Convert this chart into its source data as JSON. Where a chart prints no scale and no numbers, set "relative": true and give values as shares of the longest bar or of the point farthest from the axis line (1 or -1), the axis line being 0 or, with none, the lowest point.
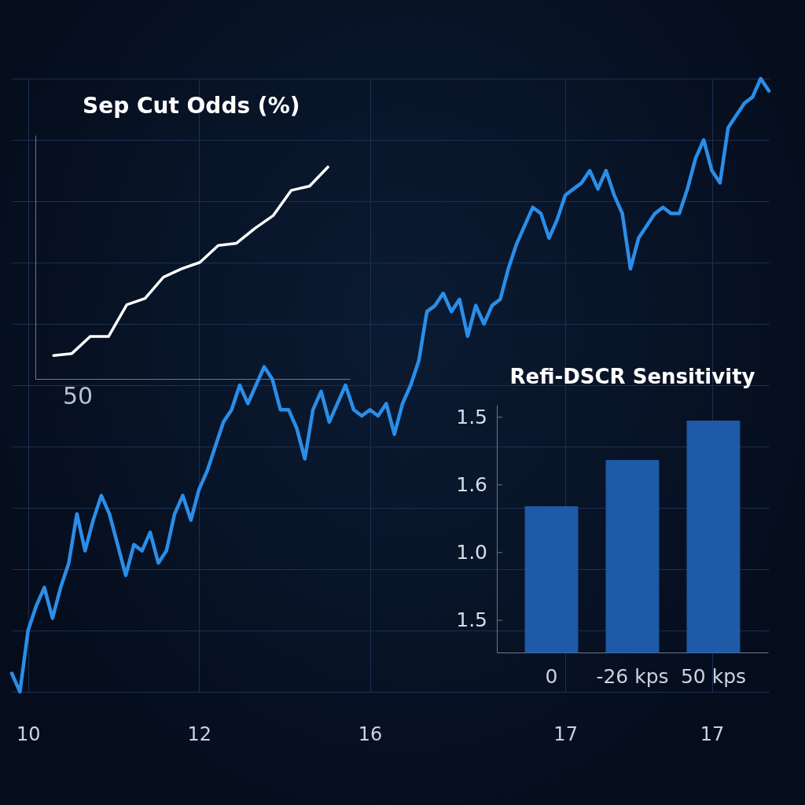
{
  "chart_data": [
    {
      "type": "line",
      "relative": true,
      "grid": true,
      "categories": [
        null,
        null,
        "10",
        null,
        null,
        null,
        null,
        null,
        null,
        null,
        null,
        null,
        null,
        null,
        null,
        null,
        null,
        null,
        null,
        null,
        null,
        null,
        null,
        "12",
        null,
        null,
        null,
        null,
        null,
        null,
        null,
        null,
        null,
        null,
        null,
        null,
        null,
        null,
        null,
        null,
        null,
        null,
        null,
        null,
        "16",
        null,
        null,
        null,
        null,
        null,
        null,
        null,
        null,
        null,
        null,
        null,
        null,
        null,
        null,
        null,
        null,
        null,
        null,
        null,
        null,
        null,
        null,
        null,
        "17",
        null,
        null,
        null,
        null,
        null,
        null,
        null,
        null,
        null,
        null,
        null,
        null,
        null,
        null,
        null,
        null,
        null,
        "17",
        null,
        null,
        null,
        null,
        null,
        null,
        null
      ],
      "series": [
        {
          "color": "#2a8ee8",
          "values": [
            0.03,
            0,
            0.1,
            0.14,
            0.17,
            0.12,
            0.17,
            0.21,
            0.29,
            0.23,
            0.28,
            0.32,
            0.29,
            0.24,
            0.19,
            0.24,
            0.23,
            0.26,
            0.21,
            0.23,
            0.29,
            0.32,
            0.28,
            0.33,
            0.36,
            0.4,
            0.44,
            0.46,
            0.5,
            0.47,
            0.5,
            0.53,
            0.51,
            0.46,
            0.46,
            0.43,
            0.38,
            0.46,
            0.49,
            0.44,
            0.47,
            0.5,
            0.46,
            0.45,
            0.46,
            0.45,
            0.47,
            0.42,
            0.47,
            0.5,
            0.54,
            0.62,
            0.63,
            0.65,
            0.62,
            0.64,
            0.58,
            0.63,
            0.6,
            0.63,
            0.64,
            0.69,
            0.73,
            0.76,
            0.79,
            0.78,
            0.74,
            0.77,
            0.81,
            0.82,
            0.83,
            0.85,
            0.82,
            0.85,
            0.81,
            0.78,
            0.69,
            0.74,
            0.76,
            0.78,
            0.79,
            0.78,
            0.78,
            0.82,
            0.87,
            0.9,
            0.85,
            0.83,
            0.92,
            0.94,
            0.96,
            0.97,
            1,
            0.98
          ]
        }
      ]
    },
    {
      "type": "line",
      "relative": true,
      "title": "Sep Cut Odds (%)",
      "categories": [
        null,
        null,
        null,
        null,
        null,
        null,
        null,
        null,
        null,
        null,
        null,
        null,
        null,
        null,
        null,
        null
      ],
      "series": [
        {
          "color": "#ffffff",
          "values": [
            0.11,
            0.12,
            0.2,
            0.2,
            0.35,
            0.38,
            0.48,
            0.52,
            0.55,
            0.63,
            0.64,
            0.71,
            0.77,
            0.89,
            0.91,
            1
          ]
        }
      ],
      "annotations": [
        "50"
      ]
    },
    {
      "type": "bar",
      "relative": true,
      "title": "Refi-DSCR Sensitivity",
      "categories": [
        "0",
        "-26 kps",
        "50 kps"
      ],
      "values": [
        0.63,
        0.83,
        1
      ],
      "color": "#1f5aa8",
      "annotations": [
        "1.5",
        "1.6",
        "1.0",
        "1.5"
      ]
    }
  ]
}
